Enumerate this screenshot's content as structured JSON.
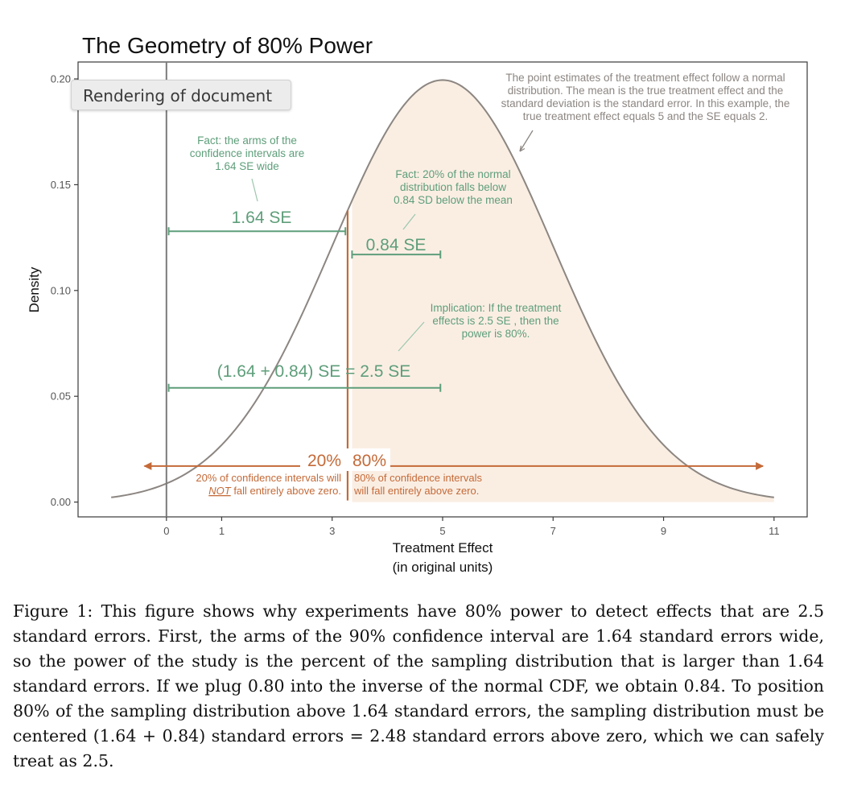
{
  "tooltip": {
    "label": "Rendering of document"
  },
  "chart_data": {
    "type": "area",
    "title": "The Geometry of 80% Power",
    "xlabel_line1": "Treatment Effect",
    "xlabel_line2": "(in original units)",
    "ylabel": "Density",
    "xlim": [
      -1.6,
      11.6
    ],
    "ylim": [
      -0.007,
      0.208
    ],
    "x_ticks": [
      0,
      1,
      3,
      5,
      7,
      9,
      11
    ],
    "y_ticks": [
      0.0,
      0.05,
      0.1,
      0.15,
      0.2
    ],
    "y_tick_labels": [
      "0.00",
      "0.05",
      "0.10",
      "0.15",
      "0.20"
    ],
    "grid": false,
    "distribution": {
      "name": "normal",
      "mean": 5,
      "sd": 2,
      "x_from": -1,
      "x_to": 11
    },
    "shaded_region": {
      "from": 3.36,
      "to": 11,
      "color": "#faeee3"
    },
    "vlines": [
      {
        "x": 0,
        "color": "#7b7b7b"
      },
      {
        "x": 3.28,
        "color": "#c46a38"
      }
    ],
    "segments": [
      {
        "label": "1.64 SE",
        "x_from": 0.04,
        "x_to": 3.24,
        "y": 0.128
      },
      {
        "label": "0.84 SE",
        "x_from": 3.36,
        "x_to": 4.96,
        "y": 0.117
      },
      {
        "label": "(1.64 + 0.84) SE = 2.5 SE",
        "x_from": 0.04,
        "x_to": 4.96,
        "y": 0.054
      }
    ],
    "arrows": [
      {
        "label": "20%",
        "x_from": 3.28,
        "x_to": -0.4,
        "y": 0.017
      },
      {
        "label": "80%",
        "x_from": 3.28,
        "x_to": 10.8,
        "y": 0.017
      }
    ],
    "annotations": {
      "top_right": [
        "The point estimates of the treatment effect follow a normal",
        "distribution. The mean is the true treatment effect and the",
        "standard deviation is the standard error. In this example, the",
        "true treatment effect equals 5 and the SE equals 2."
      ],
      "fact1": [
        "Fact: the arms of the",
        "confidence intervals are",
        "1.64 SE wide"
      ],
      "fact2": [
        "Fact: 20% of the normal",
        "distribution falls below",
        "0.84 SD below the mean"
      ],
      "implication": [
        "Implication: If the treatment",
        "effects is 2.5 SE , then the",
        "power is 80%."
      ],
      "below_left_1": "20% of confidence intervals will",
      "below_left_2_not": "NOT",
      "below_left_2_rest": " fall entirely above zero.",
      "below_right_1": "80% of confidence intervals",
      "below_right_2": "will fall entirely above zero."
    },
    "colors": {
      "green": "#5e9e7a",
      "orange": "#c46a38",
      "curve": "#8c8682",
      "axis": "#3a3a3a",
      "tick_text": "#555555"
    }
  },
  "caption": "Figure 1: This figure shows why experiments have 80% power to detect effects that are 2.5 standard errors. First, the arms of the 90% confidence interval are 1.64 standard errors wide, so the power of the study is the percent of the sampling distribution that is larger than 1.64 standard errors. If we plug 0.80 into the inverse of the normal CDF, we obtain 0.84. To position 80% of the sampling distribution above 1.64 standard errors, the sampling distribution must be centered (1.64 + 0.84) standard errors = 2.48 standard errors above zero, which we can safely treat as 2.5."
}
